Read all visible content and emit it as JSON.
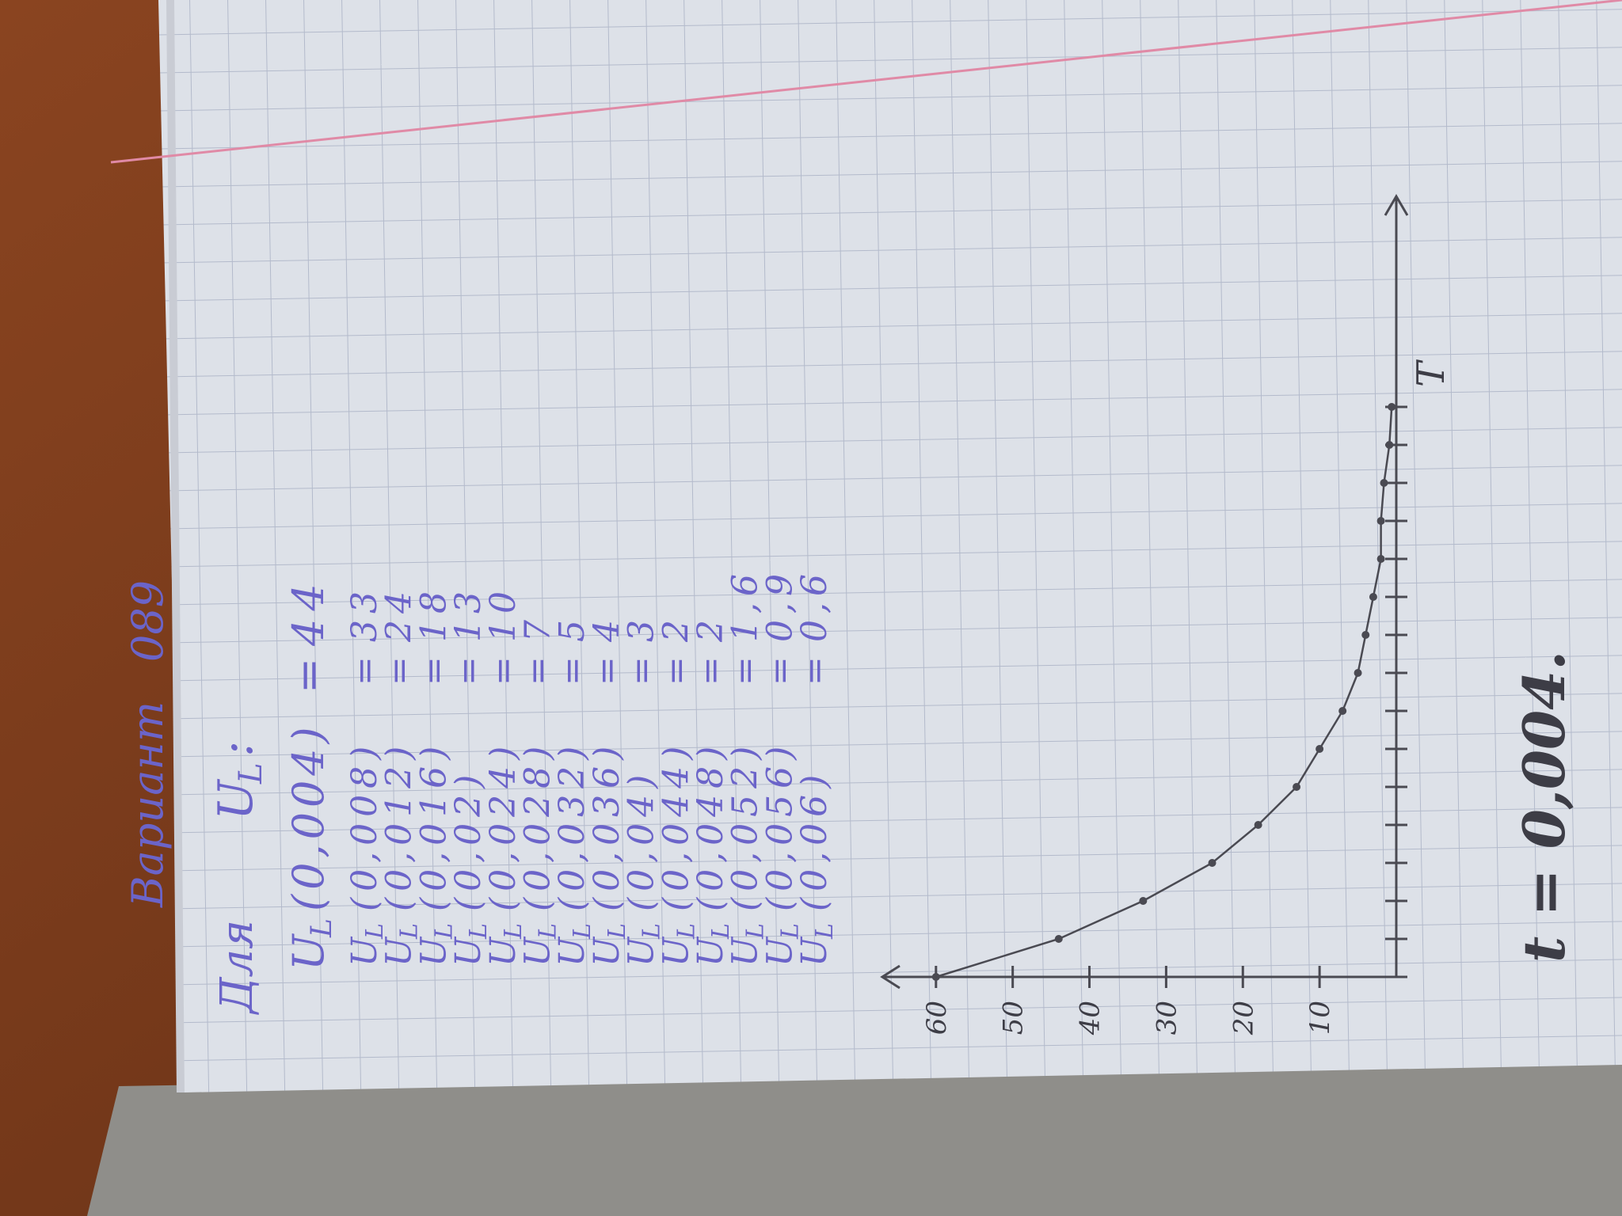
{
  "header": {
    "label": "Вариант",
    "number": "089"
  },
  "intro": {
    "word": "Для",
    "symbol": "U",
    "subscript": "L",
    "suffix": ":"
  },
  "first": {
    "arg": "(0,004)",
    "value": "44"
  },
  "equals": "=",
  "rows": [
    {
      "arg": "(0,008)",
      "value": "33"
    },
    {
      "arg": "(0,012)",
      "value": "24"
    },
    {
      "arg": "(0,016)",
      "value": "18"
    },
    {
      "arg": "(0,02)",
      "value": "13"
    },
    {
      "arg": "(0,024)",
      "value": "10"
    },
    {
      "arg": "(0,028)",
      "value": "7"
    },
    {
      "arg": "(0,032)",
      "value": "5"
    },
    {
      "arg": "(0,036)",
      "value": "4"
    },
    {
      "arg": "(0,04)",
      "value": "3"
    },
    {
      "arg": "(0,044)",
      "value": "2"
    },
    {
      "arg": "(0,048)",
      "value": "2"
    },
    {
      "arg": "(0,052)",
      "value": "1,6"
    },
    {
      "arg": "(0,056)",
      "value": "0,9"
    },
    {
      "arg": "(0,06)",
      "value": "0,6"
    }
  ],
  "chart_data": {
    "type": "line",
    "x_label": "T",
    "categories": [
      null,
      null,
      null,
      null,
      null,
      null,
      null,
      null,
      null,
      null,
      null,
      null,
      null,
      null,
      null,
      null
    ],
    "series": [
      {
        "color": "#4a4a52",
        "values": [
          60,
          44,
          33,
          24,
          18,
          13,
          10,
          7,
          5,
          4,
          3,
          2,
          2,
          1.6,
          0.9,
          0.6
        ]
      }
    ],
    "ylim": [
      0,
      67
    ],
    "yticks": [
      10,
      20,
      30,
      40,
      50,
      60
    ]
  },
  "footer": "t = 0,004."
}
